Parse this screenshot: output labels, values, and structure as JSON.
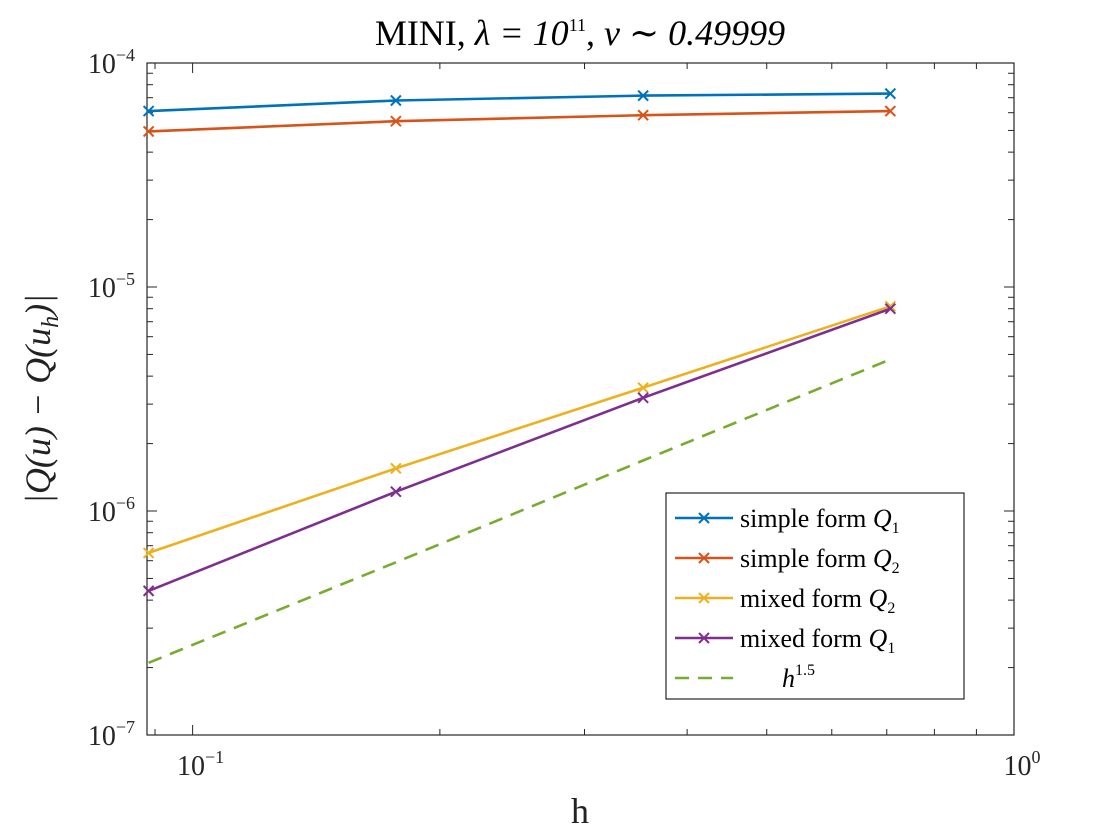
{
  "chart_data": {
    "type": "line",
    "title": {
      "prefix": "MINI, ",
      "lambda_text": "λ = 10",
      "lambda_exp": "11",
      "sep": ", ",
      "nu_text": "ν ∼ 0.49999"
    },
    "xlabel": "h",
    "ylabel": "|Q(u) − Q(u",
    "ylabel_sub": "h",
    "ylabel_end": ")|",
    "xscale": "log",
    "yscale": "log",
    "xlim": [
      0.088,
      1.0
    ],
    "ylim": [
      1e-07,
      0.0001
    ],
    "x_ticks": [
      {
        "value": 0.1,
        "base": "10",
        "exp": "−1"
      },
      {
        "value": 1.0,
        "base": "10",
        "exp": "0"
      }
    ],
    "y_ticks": [
      {
        "value": 0.0001,
        "base": "10",
        "exp": "−4"
      },
      {
        "value": 1e-05,
        "base": "10",
        "exp": "−5"
      },
      {
        "value": 1e-06,
        "base": "10",
        "exp": "−6"
      },
      {
        "value": 1e-07,
        "base": "10",
        "exp": "−7"
      }
    ],
    "grid": false,
    "legend_placement": "lower-right",
    "series": [
      {
        "name": "simple form Q",
        "name_sub": "1",
        "color": "#0072BD",
        "dash": "solid",
        "marker": "x",
        "x": [
          0.0884,
          0.1768,
          0.3536,
          0.7071
        ],
        "y": [
          6.1e-05,
          6.8e-05,
          7.15e-05,
          7.3e-05
        ]
      },
      {
        "name": "simple form Q",
        "name_sub": "2",
        "color": "#D95319",
        "dash": "solid",
        "marker": "x",
        "x": [
          0.0884,
          0.1768,
          0.3536,
          0.7071
        ],
        "y": [
          4.95e-05,
          5.5e-05,
          5.85e-05,
          6.1e-05
        ]
      },
      {
        "name": "mixed form Q",
        "name_sub": "2",
        "color": "#EDB120",
        "dash": "solid",
        "marker": "x",
        "x": [
          0.0884,
          0.1768,
          0.3536,
          0.7071
        ],
        "y": [
          6.5e-07,
          1.55e-06,
          3.55e-06,
          8.2e-06
        ]
      },
      {
        "name": "mixed form Q",
        "name_sub": "1",
        "color": "#7E2F8E",
        "dash": "solid",
        "marker": "x",
        "x": [
          0.0884,
          0.1768,
          0.3536,
          0.7071
        ],
        "y": [
          4.4e-07,
          1.22e-06,
          3.2e-06,
          8e-06
        ]
      },
      {
        "name": "h",
        "name_sup": "1.5",
        "color": "#77AC30",
        "dash": "dashed",
        "marker": "none",
        "x": [
          0.0884,
          0.1768,
          0.3536,
          0.7071
        ],
        "y": [
          2.1e-07,
          5.9e-07,
          1.68e-06,
          4.75e-06
        ]
      }
    ]
  }
}
